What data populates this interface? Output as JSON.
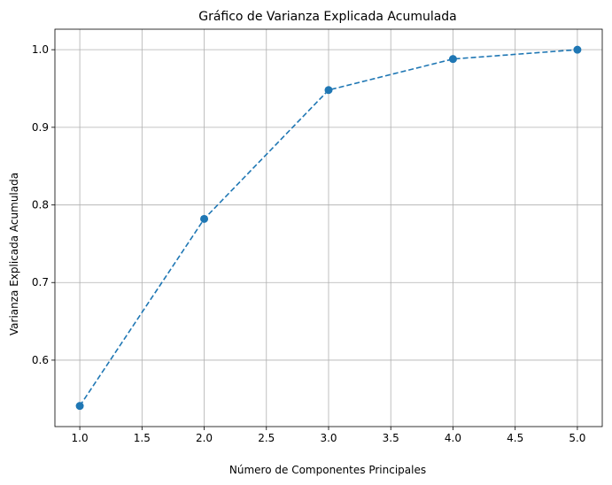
{
  "chart_data": {
    "type": "line",
    "title": "Gráfico de Varianza Explicada Acumulada",
    "xlabel": "Número de Componentes Principales",
    "ylabel": "Varianza Explicada Acumulada",
    "xlim": [
      0.8,
      5.2
    ],
    "ylim": [
      0.5144,
      1.0264
    ],
    "xticks": [
      1.0,
      1.5,
      2.0,
      2.5,
      3.0,
      3.5,
      4.0,
      4.5,
      5.0
    ],
    "xtick_labels": [
      "1.0",
      "1.5",
      "2.0",
      "2.5",
      "3.0",
      "3.5",
      "4.0",
      "4.5",
      "5.0"
    ],
    "yticks": [
      0.6,
      0.7,
      0.8,
      0.9,
      1.0
    ],
    "ytick_labels": [
      "0.6",
      "0.7",
      "0.8",
      "0.9",
      "1.0"
    ],
    "grid": true,
    "series": [
      {
        "name": "Varianza Explicada Acumulada",
        "color": "#1f77b4",
        "line_style": "dashed",
        "marker": "circle",
        "x": [
          1,
          2,
          3,
          4,
          5
        ],
        "values": [
          0.541,
          0.782,
          0.948,
          0.988,
          1.0
        ]
      }
    ]
  }
}
